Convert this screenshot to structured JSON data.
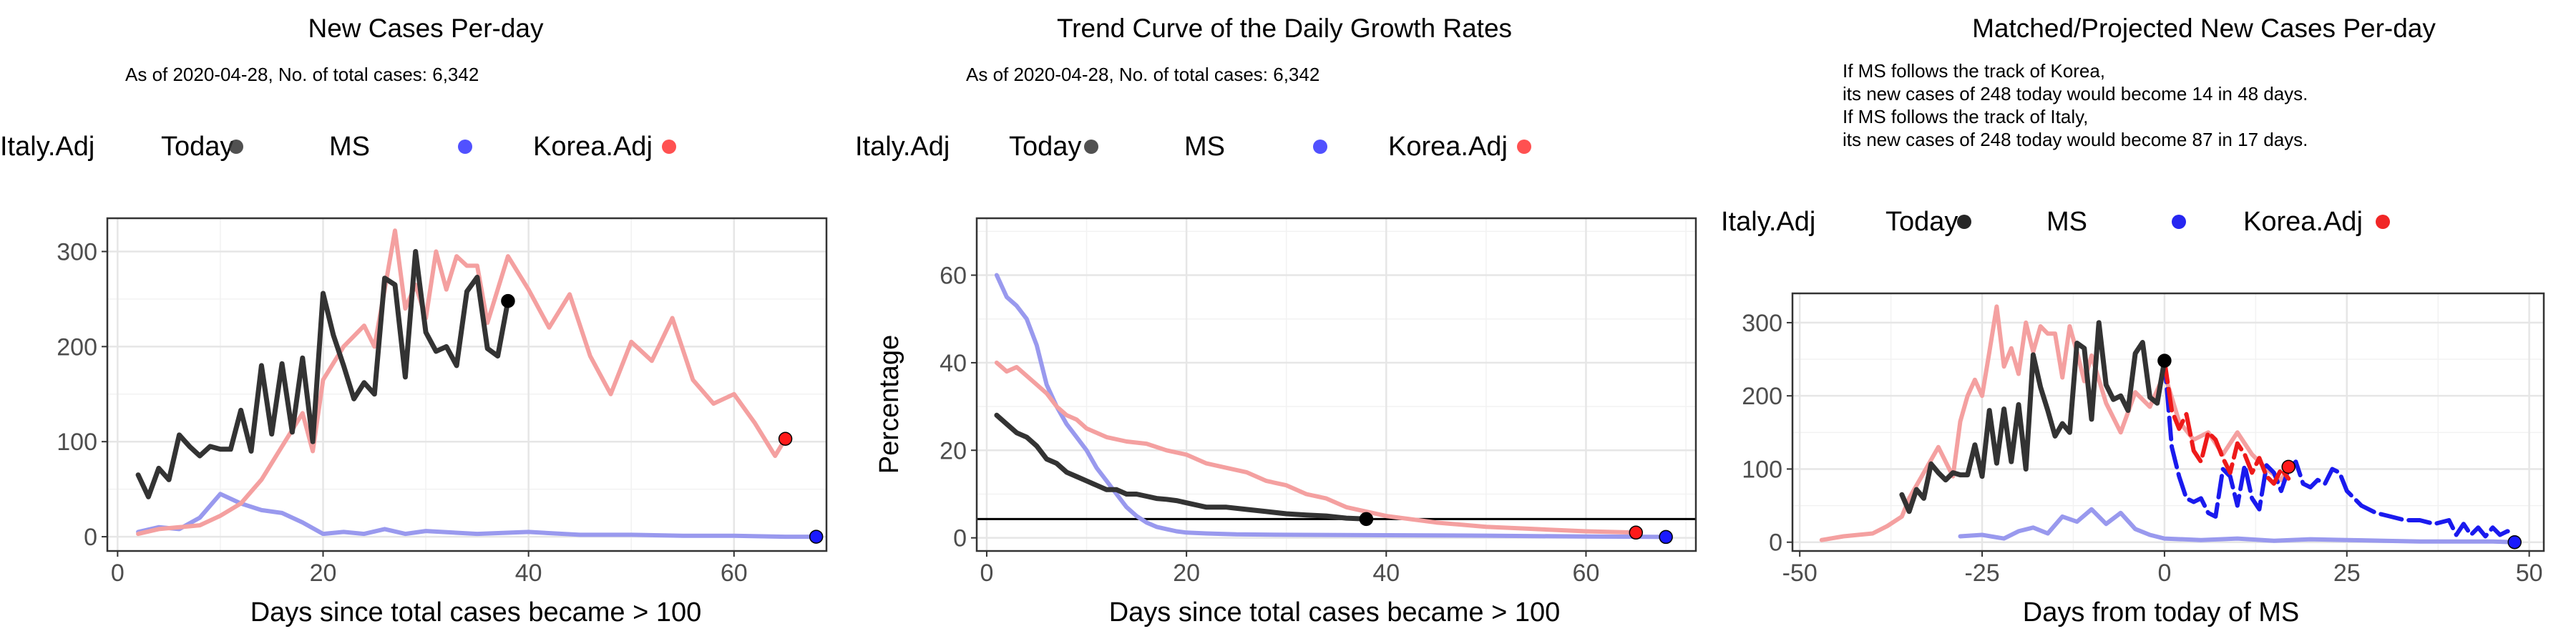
{
  "chart_data": [
    {
      "type": "line",
      "title": "New Cases Per-day",
      "subtitle": "As of 2020-04-28, No. of total cases: 6,342",
      "xlabel": "Days since total cases became > 100",
      "ylabel": "",
      "xlim": [
        -1,
        69
      ],
      "ylim": [
        -15,
        335
      ],
      "xticks": [
        0,
        20,
        40,
        60
      ],
      "yticks": [
        0,
        100,
        200,
        300
      ],
      "grid": true,
      "legend_position": "top",
      "legend": {
        "title": "Today",
        "entries": [
          {
            "label": "MS",
            "color": "#333333"
          },
          {
            "label": "Korea.Adj",
            "color": "#3333ff"
          },
          {
            "label": "Italy.Adj",
            "color": "#ff3333"
          }
        ]
      },
      "series": [
        {
          "name": "MS",
          "color": "#333333",
          "x": [
            2,
            3,
            4,
            5,
            6,
            7,
            8,
            9,
            10,
            11,
            12,
            13,
            14,
            15,
            16,
            17,
            18,
            19,
            20,
            21,
            22,
            23,
            24,
            25,
            26,
            27,
            28,
            29,
            30,
            31,
            32,
            33,
            34,
            35,
            36,
            37,
            38
          ],
          "values": [
            65,
            42,
            72,
            60,
            107,
            95,
            85,
            95,
            92,
            92,
            133,
            90,
            180,
            108,
            182,
            110,
            188,
            100,
            256,
            212,
            180,
            145,
            162,
            150,
            272,
            265,
            168,
            300,
            215,
            195,
            200,
            180,
            258,
            273,
            198,
            190,
            248
          ],
          "today": 248
        },
        {
          "name": "Korea.Adj",
          "color": "#9999ee",
          "x": [
            2,
            4,
            6,
            8,
            10,
            12,
            14,
            16,
            18,
            20,
            22,
            24,
            26,
            28,
            30,
            35,
            40,
            45,
            50,
            55,
            60,
            65,
            68
          ],
          "values": [
            5,
            10,
            8,
            20,
            45,
            35,
            28,
            25,
            15,
            3,
            5,
            3,
            8,
            3,
            6,
            3,
            5,
            2,
            2,
            1,
            1,
            0,
            0
          ],
          "today": 0
        },
        {
          "name": "Italy.Adj",
          "color": "#f4a0a0",
          "x": [
            2,
            4,
            6,
            8,
            10,
            12,
            14,
            16,
            18,
            19,
            20,
            22,
            24,
            25,
            26,
            27,
            28,
            29,
            30,
            31,
            32,
            33,
            34,
            35,
            36,
            38,
            40,
            42,
            44,
            46,
            48,
            50,
            52,
            54,
            56,
            58,
            60,
            62,
            64,
            65
          ],
          "values": [
            3,
            8,
            10,
            12,
            22,
            35,
            60,
            95,
            130,
            90,
            165,
            200,
            222,
            200,
            260,
            322,
            240,
            265,
            230,
            300,
            260,
            295,
            285,
            285,
            225,
            295,
            260,
            220,
            255,
            190,
            150,
            205,
            185,
            230,
            165,
            140,
            150,
            120,
            85,
            103
          ],
          "today": 103
        }
      ]
    },
    {
      "type": "line",
      "title": "Trend Curve of the Daily Growth Rates",
      "subtitle": "As of 2020-04-28, No. of total cases: 6,342",
      "xlabel": "Days since total cases became > 100",
      "ylabel": "Percentage",
      "xlim": [
        -1,
        71
      ],
      "ylim": [
        -3,
        73
      ],
      "xticks": [
        0,
        20,
        40,
        60
      ],
      "yticks": [
        0,
        20,
        40,
        60
      ],
      "grid": true,
      "hline": 4.3,
      "legend_position": "top",
      "legend": {
        "title": "Today",
        "entries": [
          {
            "label": "MS",
            "color": "#333333"
          },
          {
            "label": "Korea.Adj",
            "color": "#3333ff"
          },
          {
            "label": "Italy.Adj",
            "color": "#ff3333"
          }
        ]
      },
      "series": [
        {
          "name": "MS",
          "color": "#333333",
          "x": [
            1,
            2,
            3,
            4,
            5,
            6,
            7,
            8,
            9,
            10,
            11,
            12,
            13,
            14,
            15,
            16,
            17,
            18,
            19,
            20,
            22,
            24,
            26,
            28,
            30,
            32,
            34,
            36,
            38
          ],
          "values": [
            28,
            26,
            24,
            23,
            21,
            18,
            17,
            15,
            14,
            13,
            12,
            11,
            11,
            10,
            10,
            9.5,
            9,
            8.8,
            8.5,
            8,
            7,
            7,
            6.5,
            6,
            5.5,
            5.2,
            5,
            4.5,
            4.3
          ],
          "today": 4.3
        },
        {
          "name": "Korea.Adj",
          "color": "#9999ee",
          "x": [
            1,
            2,
            3,
            4,
            5,
            6,
            7,
            8,
            9,
            10,
            11,
            12,
            13,
            14,
            15,
            16,
            17,
            18,
            19,
            20,
            22,
            25,
            30,
            40,
            50,
            60,
            68
          ],
          "values": [
            60,
            55,
            53,
            50,
            44,
            35,
            30,
            26,
            23,
            20,
            16,
            13,
            10,
            7,
            5,
            3.5,
            2.5,
            2,
            1.5,
            1.2,
            1,
            0.8,
            0.7,
            0.6,
            0.5,
            0.3,
            0.2
          ],
          "today": 0.2
        },
        {
          "name": "Italy.Adj",
          "color": "#f4a0a0",
          "x": [
            1,
            2,
            3,
            4,
            5,
            6,
            7,
            8,
            9,
            10,
            12,
            14,
            16,
            18,
            20,
            22,
            24,
            26,
            28,
            30,
            32,
            34,
            36,
            38,
            40,
            45,
            50,
            55,
            60,
            65
          ],
          "values": [
            40,
            38,
            39,
            37,
            35,
            33,
            30,
            28,
            27,
            25,
            23,
            22,
            21.5,
            20,
            19,
            17,
            16,
            15,
            13,
            12,
            10,
            9,
            7,
            6,
            5,
            3.5,
            2.5,
            2,
            1.5,
            1.2
          ],
          "today": 1.2
        }
      ]
    },
    {
      "type": "line",
      "title": "Matched/Projected New Cases Per-day",
      "annotations": [
        "If MS follows the track of Korea,",
        "its new cases of 248 today would become 14 in 48 days.",
        "If MS follows the track of Italy,",
        "its new cases of 248 today would become 87 in 17 days."
      ],
      "xlabel": "Days from today of MS",
      "ylabel": "",
      "xlim": [
        -51,
        52
      ],
      "ylim": [
        -12,
        340
      ],
      "xticks": [
        -50,
        -25,
        0,
        25,
        50
      ],
      "yticks": [
        0,
        100,
        200,
        300
      ],
      "grid": true,
      "legend_position": "top",
      "legend": {
        "title": "Today",
        "entries": [
          {
            "label": "MS",
            "color": "#000000"
          },
          {
            "label": "Korea.Adj",
            "color": "#0000ee"
          },
          {
            "label": "Italy.Adj",
            "color": "#ee0000"
          }
        ]
      },
      "series": [
        {
          "name": "MS",
          "color": "#333333",
          "x": [
            -36,
            -35,
            -34,
            -33,
            -32,
            -31,
            -30,
            -29,
            -28,
            -27,
            -26,
            -25,
            -24,
            -23,
            -22,
            -21,
            -20,
            -19,
            -18,
            -17,
            -16,
            -15,
            -14,
            -13,
            -12,
            -11,
            -10,
            -9,
            -8,
            -7,
            -6,
            -5,
            -4,
            -3,
            -2,
            -1,
            0
          ],
          "values": [
            65,
            42,
            72,
            60,
            107,
            95,
            85,
            95,
            92,
            92,
            133,
            90,
            180,
            108,
            182,
            110,
            188,
            100,
            256,
            212,
            180,
            145,
            162,
            150,
            272,
            265,
            168,
            300,
            215,
            195,
            200,
            180,
            258,
            273,
            198,
            190,
            248
          ],
          "today": 248
        },
        {
          "name": "Korea.Adj (matched)",
          "color": "#9999ee",
          "x": [
            -28,
            -25,
            -22,
            -20,
            -18,
            -16,
            -14,
            -12,
            -10,
            -8,
            -6,
            -4,
            -2,
            0,
            5,
            10,
            15,
            20,
            25,
            30,
            35,
            40,
            45,
            48
          ],
          "values": [
            8,
            10,
            5,
            15,
            20,
            12,
            35,
            28,
            45,
            25,
            40,
            18,
            10,
            5,
            3,
            5,
            2,
            4,
            3,
            2,
            1,
            1,
            1,
            0
          ]
        },
        {
          "name": "Italy.Adj (matched)",
          "color": "#f4a0a0",
          "x": [
            -47,
            -44,
            -42,
            -40,
            -38,
            -36,
            -35,
            -33,
            -31,
            -29,
            -28,
            -27,
            -26,
            -25,
            -24,
            -23,
            -22,
            -21,
            -20,
            -19,
            -18,
            -17,
            -16,
            -15,
            -14,
            -13,
            -12,
            -11,
            -10,
            -8,
            -6,
            -4,
            -2,
            0,
            2,
            4,
            6,
            8,
            10,
            12,
            14,
            16,
            17
          ],
          "values": [
            3,
            8,
            10,
            12,
            22,
            35,
            60,
            95,
            130,
            90,
            165,
            200,
            222,
            200,
            260,
            322,
            240,
            265,
            230,
            300,
            260,
            295,
            285,
            285,
            225,
            295,
            260,
            220,
            255,
            190,
            150,
            205,
            185,
            230,
            165,
            140,
            150,
            120,
            150,
            120,
            100,
            85,
            103
          ]
        },
        {
          "name": "Korea.Adj (projected)",
          "color": "#1a1aee",
          "dashed": true,
          "x": [
            0,
            1,
            2,
            3,
            4,
            5,
            6,
            7,
            8,
            9,
            10,
            11,
            12,
            13,
            14,
            15,
            16,
            17,
            18,
            19,
            20,
            21,
            22,
            23,
            24,
            25,
            27,
            29,
            31,
            33,
            35,
            37,
            39,
            40,
            41,
            42,
            43,
            44,
            45,
            46,
            47,
            48
          ],
          "values": [
            248,
            130,
            90,
            60,
            55,
            60,
            40,
            35,
            100,
            90,
            50,
            105,
            60,
            45,
            105,
            95,
            70,
            100,
            110,
            80,
            75,
            85,
            80,
            100,
            95,
            70,
            50,
            40,
            35,
            30,
            30,
            25,
            30,
            10,
            25,
            10,
            20,
            8,
            20,
            10,
            15,
            14
          ],
          "today": 0
        },
        {
          "name": "Italy.Adj (projected)",
          "color": "#ee1a1a",
          "dashed": true,
          "x": [
            0,
            1,
            2,
            3,
            4,
            5,
            6,
            7,
            8,
            9,
            10,
            11,
            12,
            13,
            14,
            15,
            16,
            17
          ],
          "values": [
            248,
            180,
            155,
            175,
            125,
            110,
            150,
            140,
            115,
            95,
            135,
            120,
            95,
            115,
            90,
            80,
            100,
            87
          ],
          "today": 103
        }
      ]
    }
  ]
}
